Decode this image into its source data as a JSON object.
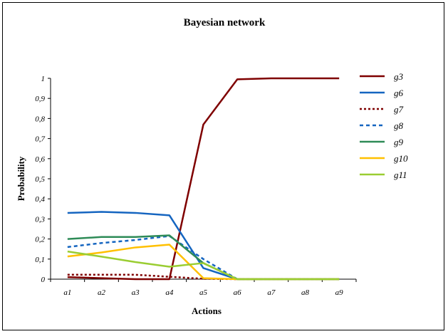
{
  "chart_data": {
    "type": "line",
    "title": "Bayesian network",
    "xlabel": "Actions",
    "ylabel": "Probability",
    "categories": [
      "a1",
      "a2",
      "a3",
      "a4",
      "a5",
      "a6",
      "a7",
      "a8",
      "a9"
    ],
    "ylim": [
      0,
      1
    ],
    "yticks": [
      "0",
      "0,1",
      "0,2",
      "0,3",
      "0,4",
      "0,5",
      "0,6",
      "0,7",
      "0,8",
      "0,9",
      "1"
    ],
    "grid": false,
    "legend_position": "right",
    "series": [
      {
        "name": "g3",
        "color": "#7f0000",
        "dash": "solid",
        "values": [
          0.01,
          0.005,
          0.0,
          0.0,
          0.77,
          0.995,
          1.0,
          1.0,
          1.0
        ]
      },
      {
        "name": "g6",
        "color": "#1565c0",
        "dash": "solid",
        "values": [
          0.33,
          0.335,
          0.33,
          0.318,
          0.055,
          0.0,
          0.0,
          0.0,
          0.0
        ]
      },
      {
        "name": "g7",
        "color": "#7f0000",
        "dash": "dotted",
        "values": [
          0.022,
          0.022,
          0.022,
          0.012,
          0.002,
          0.0,
          0.0,
          0.0,
          0.0
        ]
      },
      {
        "name": "g8",
        "color": "#1565c0",
        "dash": "dashed",
        "values": [
          0.16,
          0.18,
          0.195,
          0.215,
          0.1,
          0.0,
          0.0,
          0.0,
          0.0
        ]
      },
      {
        "name": "g9",
        "color": "#2e8b57",
        "dash": "solid",
        "values": [
          0.2,
          0.21,
          0.21,
          0.218,
          0.08,
          0.0,
          0.0,
          0.0,
          0.0
        ]
      },
      {
        "name": "g10",
        "color": "#ffc000",
        "dash": "solid",
        "values": [
          0.113,
          0.133,
          0.158,
          0.172,
          0.005,
          0.0,
          0.0,
          0.0,
          0.0
        ]
      },
      {
        "name": "g11",
        "color": "#9acd32",
        "dash": "solid",
        "values": [
          0.138,
          0.112,
          0.085,
          0.062,
          0.08,
          0.0,
          0.0,
          0.0,
          0.0
        ]
      }
    ]
  }
}
